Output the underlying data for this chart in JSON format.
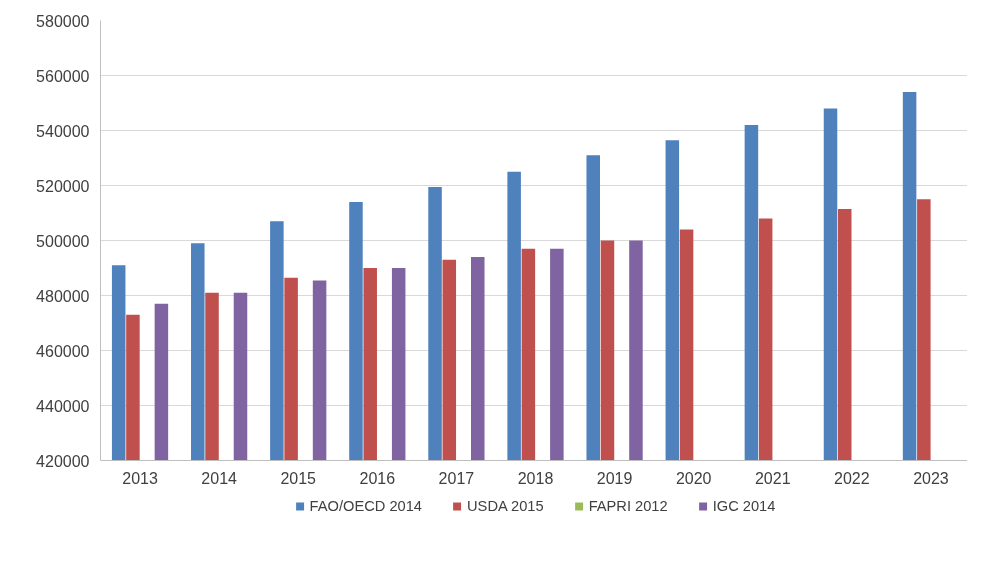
{
  "chart_data": {
    "type": "bar",
    "categories": [
      "2013",
      "2014",
      "2015",
      "2016",
      "2017",
      "2018",
      "2019",
      "2020",
      "2021",
      "2022",
      "2023"
    ],
    "series": [
      {
        "name": "FAO/OECD 2014",
        "color": "#4f81bd",
        "values": [
          491000,
          499000,
          507000,
          514000,
          519500,
          525000,
          531000,
          536500,
          542000,
          548000,
          554000
        ]
      },
      {
        "name": "USDA 2015",
        "color": "#c0504d",
        "values": [
          473000,
          481000,
          486500,
          490000,
          493000,
          497000,
          500000,
          504000,
          508000,
          511500,
          515000
        ]
      },
      {
        "name": "FAPRI 2012",
        "color": "#9bbb59",
        "values": [
          null,
          null,
          null,
          null,
          null,
          null,
          null,
          null,
          null,
          null,
          null
        ]
      },
      {
        "name": "IGC 2014",
        "color": "#8064a2",
        "values": [
          477000,
          481000,
          485500,
          490000,
          494000,
          497000,
          500000,
          null,
          null,
          null,
          null
        ]
      }
    ],
    "ylim": [
      420000,
      580000
    ],
    "yticks": [
      420000,
      440000,
      460000,
      480000,
      500000,
      520000,
      540000,
      560000,
      580000
    ],
    "grid": "y",
    "legend": "bottom"
  }
}
